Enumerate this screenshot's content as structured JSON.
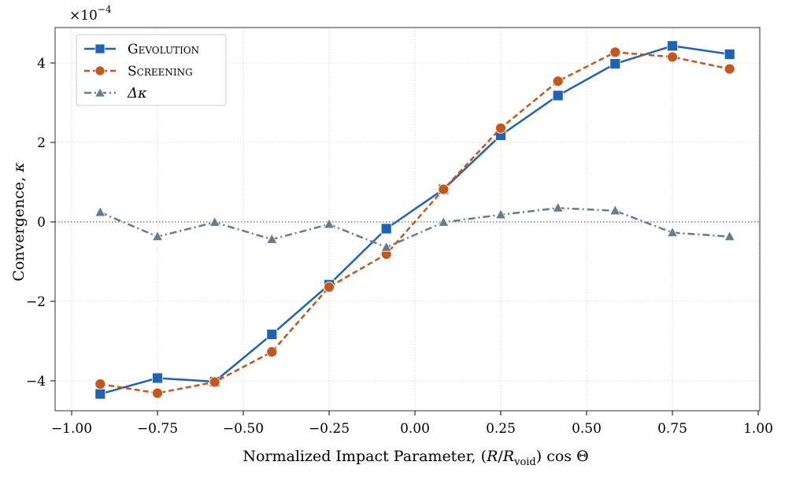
{
  "chart_data": {
    "type": "line",
    "title": "",
    "xlabel": "Normalized Impact Parameter, (R/R_void) cos Θ",
    "ylabel": "Convergence, κ",
    "x_label_parts": {
      "prefix": "Normalized Impact Parameter, (",
      "R1": "R",
      "slash": "/",
      "R2": "R",
      "sub": "void",
      "suffix": ") cos Θ"
    },
    "y_label_parts": {
      "text": "Convergence, ",
      "symbol": "κ"
    },
    "y_scale_label": {
      "base": "×10",
      "exponent": "−4"
    },
    "xlim": [
      -1.0,
      1.0
    ],
    "ylim": [
      -4.8,
      4.9
    ],
    "x_ticks": [
      -1.0,
      -0.75,
      -0.5,
      -0.25,
      0.0,
      0.25,
      0.5,
      0.75,
      1.0
    ],
    "x_tick_labels": [
      "−1.00",
      "−0.75",
      "−0.50",
      "−0.25",
      "0.00",
      "0.25",
      "0.50",
      "0.75",
      "1.00"
    ],
    "y_ticks": [
      -4,
      -2,
      0,
      2,
      4
    ],
    "y_tick_labels": [
      "−4",
      "−2",
      "0",
      "2",
      "4"
    ],
    "grid": true,
    "zero_line": true,
    "legend_position": "top-left",
    "x": [
      -0.9167,
      -0.75,
      -0.5833,
      -0.4167,
      -0.25,
      -0.0833,
      0.0833,
      0.25,
      0.4167,
      0.5833,
      0.75,
      0.9167
    ],
    "series": [
      {
        "name": "Gevolution",
        "label": "Gevolution",
        "color": "#2062b5",
        "marker": "square",
        "linestyle": "solid",
        "values": [
          -4.33,
          -3.93,
          -4.02,
          -2.83,
          -1.58,
          -0.17,
          0.82,
          2.18,
          3.18,
          3.98,
          4.43,
          4.22
        ]
      },
      {
        "name": "Screening",
        "label": "Screening",
        "color": "#c7561a",
        "marker": "circle",
        "linestyle": "dashed",
        "values": [
          -4.08,
          -4.31,
          -4.03,
          -3.27,
          -1.64,
          -0.81,
          0.82,
          2.36,
          3.54,
          4.27,
          4.15,
          3.85
        ]
      },
      {
        "name": "Delta kappa",
        "label": "Δκ",
        "color": "#657c8c",
        "marker": "triangle",
        "linestyle": "dashdot",
        "values": [
          0.24,
          -0.37,
          -0.01,
          -0.44,
          -0.06,
          -0.64,
          -0.01,
          0.18,
          0.35,
          0.28,
          -0.27,
          -0.37
        ]
      }
    ]
  }
}
